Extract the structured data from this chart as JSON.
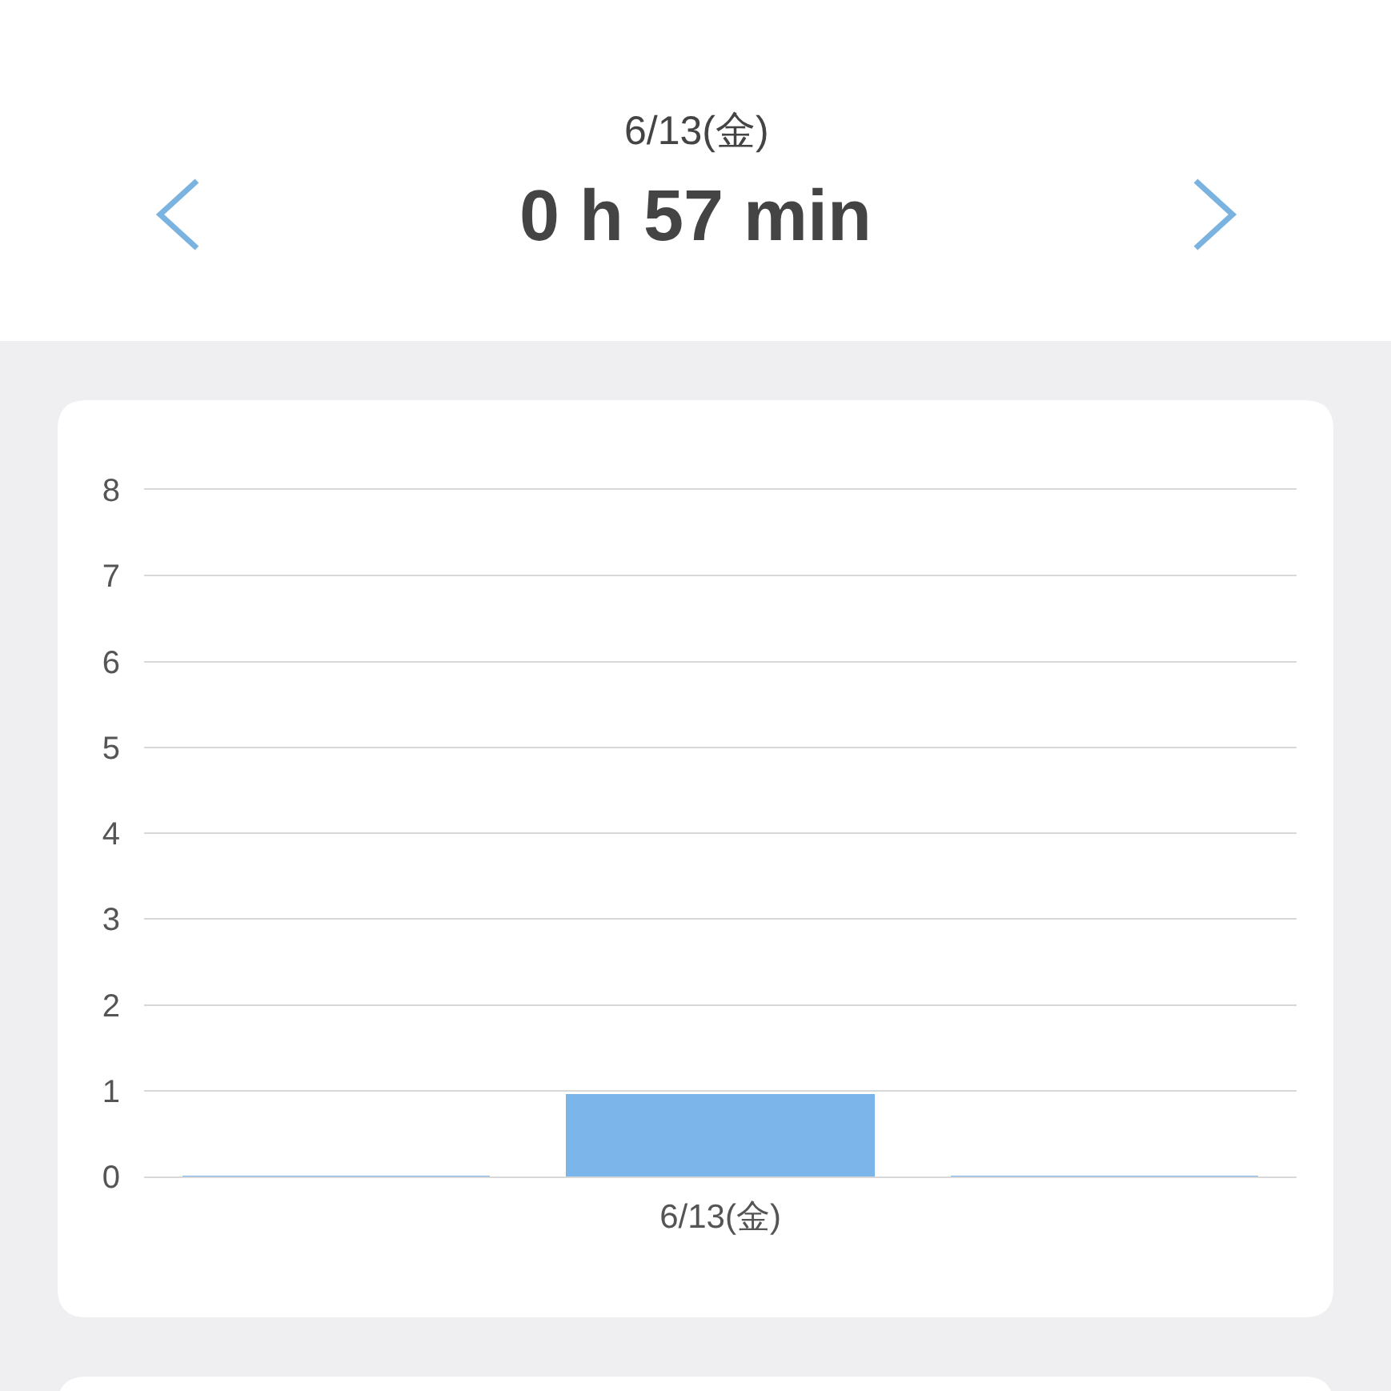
{
  "chart_data": {
    "type": "bar",
    "title": "0 h 57 min",
    "subtitle": "6/13(金)",
    "categories": [
      null,
      "6/13(金)",
      null
    ],
    "values": [
      0,
      0.95,
      0
    ],
    "color": "#7bb5ea",
    "ylim": [
      0,
      8
    ],
    "yticks": [
      0,
      1,
      2,
      3,
      4,
      5,
      6,
      7,
      8
    ],
    "grid": "y"
  }
}
